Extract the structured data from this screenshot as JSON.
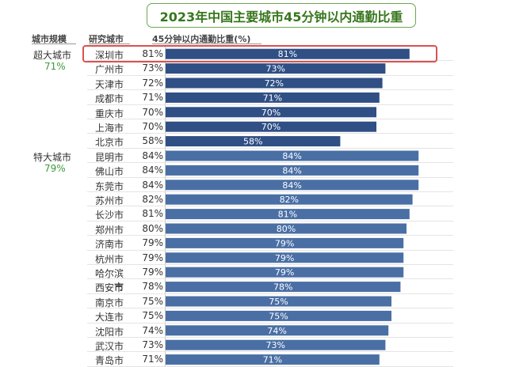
{
  "chart_data": {
    "type": "bar",
    "title": "2023年中国主要城市45分钟以内通勤比重",
    "column_headers": {
      "group": "城市规模",
      "city": "研究城市",
      "value": "45分钟以内通勤比重(%)"
    },
    "groups": [
      {
        "name": "超大城市",
        "value_label": "71%",
        "value": 71
      },
      {
        "name": "特大城市",
        "value_label": "79%",
        "value": 79
      }
    ],
    "categories": [
      "深圳市",
      "广州市",
      "天津市",
      "成都市",
      "重庆市",
      "上海市",
      "北京市",
      "昆明市",
      "佛山市",
      "东莞市",
      "苏州市",
      "长沙市",
      "郑州市",
      "济南市",
      "杭州市",
      "哈尔滨市",
      "西安市",
      "南京市",
      "大连市",
      "沈阳市",
      "武汉市",
      "青岛市"
    ],
    "values": [
      81,
      73,
      72,
      71,
      70,
      70,
      58,
      84,
      84,
      84,
      82,
      81,
      80,
      79,
      79,
      79,
      78,
      75,
      75,
      74,
      73,
      71
    ],
    "labels": [
      "81%",
      "73%",
      "72%",
      "71%",
      "70%",
      "70%",
      "58%",
      "84%",
      "84%",
      "84%",
      "82%",
      "81%",
      "80%",
      "79%",
      "79%",
      "79%",
      "78%",
      "75%",
      "75%",
      "74%",
      "73%",
      "71%"
    ],
    "group_index": [
      0,
      0,
      0,
      0,
      0,
      0,
      0,
      1,
      1,
      1,
      1,
      1,
      1,
      1,
      1,
      1,
      1,
      1,
      1,
      1,
      1,
      1
    ],
    "highlighted_category": "深圳市",
    "xlim": [
      0,
      100
    ],
    "colors": {
      "group1": "#2f4f85",
      "group2": "#4a6fa5",
      "label": "#ffffff",
      "title": "#38761d",
      "group_pct": "#3c9a3c",
      "highlight": "#d9534f"
    }
  }
}
